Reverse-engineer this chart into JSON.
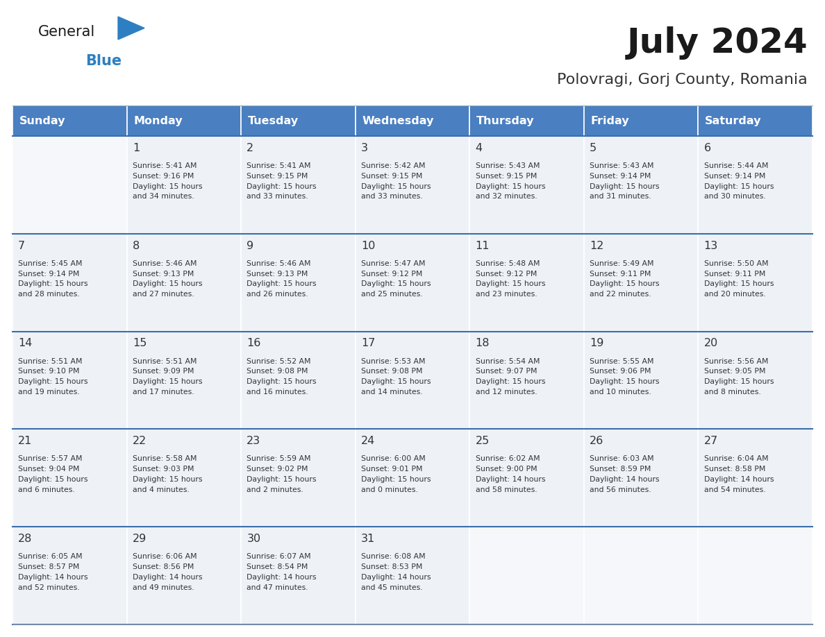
{
  "title": "July 2024",
  "subtitle": "Polovragi, Gorj County, Romania",
  "days_of_week": [
    "Sunday",
    "Monday",
    "Tuesday",
    "Wednesday",
    "Thursday",
    "Friday",
    "Saturday"
  ],
  "header_bg": "#4a7fc1",
  "header_text": "#ffffff",
  "cell_bg": "#eef2f7",
  "cell_bg_empty": "#f5f7fa",
  "cell_border_color": "#ffffff",
  "row_divider_color": "#3a6eaa",
  "day_number_color": "#333333",
  "info_text_color": "#333333",
  "title_color": "#1a1a1a",
  "subtitle_color": "#333333",
  "logo_general_color": "#1a1a1a",
  "logo_blue_color": "#2e7fc1",
  "fig_width": 11.88,
  "fig_height": 9.18,
  "dpi": 100,
  "weeks": [
    [
      {
        "day": "",
        "info": ""
      },
      {
        "day": "1",
        "info": "Sunrise: 5:41 AM\nSunset: 9:16 PM\nDaylight: 15 hours\nand 34 minutes."
      },
      {
        "day": "2",
        "info": "Sunrise: 5:41 AM\nSunset: 9:15 PM\nDaylight: 15 hours\nand 33 minutes."
      },
      {
        "day": "3",
        "info": "Sunrise: 5:42 AM\nSunset: 9:15 PM\nDaylight: 15 hours\nand 33 minutes."
      },
      {
        "day": "4",
        "info": "Sunrise: 5:43 AM\nSunset: 9:15 PM\nDaylight: 15 hours\nand 32 minutes."
      },
      {
        "day": "5",
        "info": "Sunrise: 5:43 AM\nSunset: 9:14 PM\nDaylight: 15 hours\nand 31 minutes."
      },
      {
        "day": "6",
        "info": "Sunrise: 5:44 AM\nSunset: 9:14 PM\nDaylight: 15 hours\nand 30 minutes."
      }
    ],
    [
      {
        "day": "7",
        "info": "Sunrise: 5:45 AM\nSunset: 9:14 PM\nDaylight: 15 hours\nand 28 minutes."
      },
      {
        "day": "8",
        "info": "Sunrise: 5:46 AM\nSunset: 9:13 PM\nDaylight: 15 hours\nand 27 minutes."
      },
      {
        "day": "9",
        "info": "Sunrise: 5:46 AM\nSunset: 9:13 PM\nDaylight: 15 hours\nand 26 minutes."
      },
      {
        "day": "10",
        "info": "Sunrise: 5:47 AM\nSunset: 9:12 PM\nDaylight: 15 hours\nand 25 minutes."
      },
      {
        "day": "11",
        "info": "Sunrise: 5:48 AM\nSunset: 9:12 PM\nDaylight: 15 hours\nand 23 minutes."
      },
      {
        "day": "12",
        "info": "Sunrise: 5:49 AM\nSunset: 9:11 PM\nDaylight: 15 hours\nand 22 minutes."
      },
      {
        "day": "13",
        "info": "Sunrise: 5:50 AM\nSunset: 9:11 PM\nDaylight: 15 hours\nand 20 minutes."
      }
    ],
    [
      {
        "day": "14",
        "info": "Sunrise: 5:51 AM\nSunset: 9:10 PM\nDaylight: 15 hours\nand 19 minutes."
      },
      {
        "day": "15",
        "info": "Sunrise: 5:51 AM\nSunset: 9:09 PM\nDaylight: 15 hours\nand 17 minutes."
      },
      {
        "day": "16",
        "info": "Sunrise: 5:52 AM\nSunset: 9:08 PM\nDaylight: 15 hours\nand 16 minutes."
      },
      {
        "day": "17",
        "info": "Sunrise: 5:53 AM\nSunset: 9:08 PM\nDaylight: 15 hours\nand 14 minutes."
      },
      {
        "day": "18",
        "info": "Sunrise: 5:54 AM\nSunset: 9:07 PM\nDaylight: 15 hours\nand 12 minutes."
      },
      {
        "day": "19",
        "info": "Sunrise: 5:55 AM\nSunset: 9:06 PM\nDaylight: 15 hours\nand 10 minutes."
      },
      {
        "day": "20",
        "info": "Sunrise: 5:56 AM\nSunset: 9:05 PM\nDaylight: 15 hours\nand 8 minutes."
      }
    ],
    [
      {
        "day": "21",
        "info": "Sunrise: 5:57 AM\nSunset: 9:04 PM\nDaylight: 15 hours\nand 6 minutes."
      },
      {
        "day": "22",
        "info": "Sunrise: 5:58 AM\nSunset: 9:03 PM\nDaylight: 15 hours\nand 4 minutes."
      },
      {
        "day": "23",
        "info": "Sunrise: 5:59 AM\nSunset: 9:02 PM\nDaylight: 15 hours\nand 2 minutes."
      },
      {
        "day": "24",
        "info": "Sunrise: 6:00 AM\nSunset: 9:01 PM\nDaylight: 15 hours\nand 0 minutes."
      },
      {
        "day": "25",
        "info": "Sunrise: 6:02 AM\nSunset: 9:00 PM\nDaylight: 14 hours\nand 58 minutes."
      },
      {
        "day": "26",
        "info": "Sunrise: 6:03 AM\nSunset: 8:59 PM\nDaylight: 14 hours\nand 56 minutes."
      },
      {
        "day": "27",
        "info": "Sunrise: 6:04 AM\nSunset: 8:58 PM\nDaylight: 14 hours\nand 54 minutes."
      }
    ],
    [
      {
        "day": "28",
        "info": "Sunrise: 6:05 AM\nSunset: 8:57 PM\nDaylight: 14 hours\nand 52 minutes."
      },
      {
        "day": "29",
        "info": "Sunrise: 6:06 AM\nSunset: 8:56 PM\nDaylight: 14 hours\nand 49 minutes."
      },
      {
        "day": "30",
        "info": "Sunrise: 6:07 AM\nSunset: 8:54 PM\nDaylight: 14 hours\nand 47 minutes."
      },
      {
        "day": "31",
        "info": "Sunrise: 6:08 AM\nSunset: 8:53 PM\nDaylight: 14 hours\nand 45 minutes."
      },
      {
        "day": "",
        "info": ""
      },
      {
        "day": "",
        "info": ""
      },
      {
        "day": "",
        "info": ""
      }
    ]
  ]
}
